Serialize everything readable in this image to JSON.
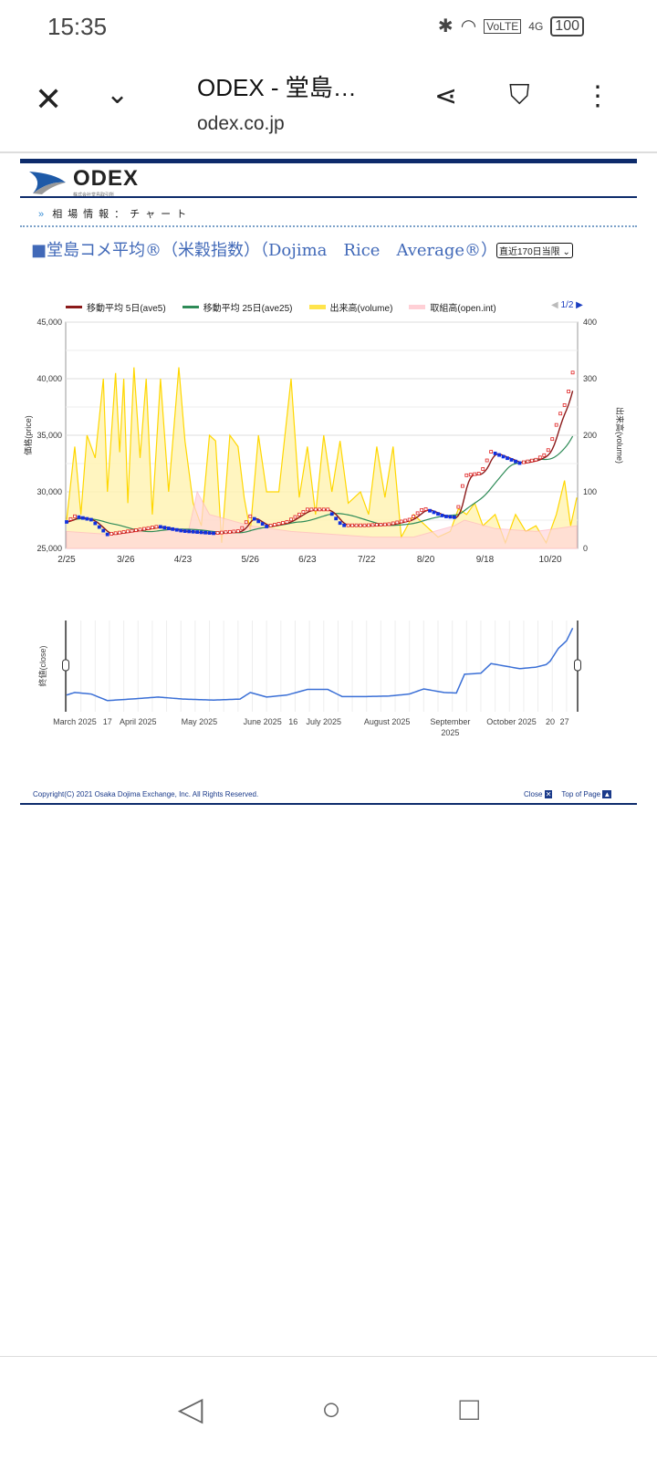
{
  "status": {
    "time": "15:35",
    "battery": "100",
    "network": "4G",
    "volte": "VoLTE"
  },
  "browser": {
    "title": "ODEX - 堂島…",
    "url": "odex.co.jp"
  },
  "site": {
    "logo": "ODEX",
    "logo_sub": "株式会社堂島取引所",
    "breadcrumb": "相場情報：チャート",
    "page_title": "■堂島コメ平均®（米穀指数）（Dojima　Rice　Average®）",
    "range_select": "直近170日当限",
    "pager": "1/2",
    "copyright": "Copyright(C) 2021  Osaka Dojima Exchange, Inc. All Rights Reserved.",
    "close_link": "Close",
    "top_link": "Top of Page"
  },
  "colors": {
    "ave5": "#8b1a1a",
    "ave25": "#2e8b57",
    "volume": "#ffd700",
    "openint": "#ffc0cb",
    "close_line": "#3a6fd6",
    "header": "#0d2b6b"
  },
  "chart_data": {
    "type": "line",
    "legend": [
      "移動平均 5日(ave5)",
      "移動平均 25日(ave25)",
      "出来高(volume)",
      "取組高(open.int)"
    ],
    "ylabel": "価格(price)",
    "y2label": "出来高(volume)",
    "ylim": [
      25000,
      45000
    ],
    "y2lim": [
      0,
      400
    ],
    "yticks": [
      "25,000",
      "30,000",
      "35,000",
      "40,000",
      "45,000"
    ],
    "y2ticks": [
      "0",
      "100",
      "200",
      "300",
      "400"
    ],
    "xticks": [
      {
        "label": "2/25",
        "day": 0
      },
      {
        "label": "3/26",
        "day": 29
      },
      {
        "label": "4/23",
        "day": 57
      },
      {
        "label": "5/26",
        "day": 90
      },
      {
        "label": "6/23",
        "day": 118
      },
      {
        "label": "7/22",
        "day": 147
      },
      {
        "label": "8/20",
        "day": 176
      },
      {
        "label": "9/18",
        "day": 205
      },
      {
        "label": "10/20",
        "day": 237
      }
    ],
    "close": [
      [
        0,
        27300
      ],
      [
        4,
        27800
      ],
      [
        12,
        27500
      ],
      [
        20,
        26200
      ],
      [
        35,
        26600
      ],
      [
        45,
        26900
      ],
      [
        57,
        26500
      ],
      [
        72,
        26300
      ],
      [
        85,
        26500
      ],
      [
        90,
        27800
      ],
      [
        98,
        26900
      ],
      [
        108,
        27300
      ],
      [
        118,
        28400
      ],
      [
        128,
        28400
      ],
      [
        135,
        27000
      ],
      [
        147,
        27000
      ],
      [
        158,
        27100
      ],
      [
        168,
        27500
      ],
      [
        175,
        28500
      ],
      [
        185,
        27800
      ],
      [
        191,
        27700
      ],
      [
        195,
        31400
      ],
      [
        203,
        31600
      ],
      [
        208,
        33500
      ],
      [
        215,
        33000
      ],
      [
        222,
        32500
      ],
      [
        230,
        32800
      ],
      [
        235,
        33300
      ],
      [
        237,
        34000
      ],
      [
        241,
        36500
      ],
      [
        245,
        38000
      ],
      [
        248,
        40500
      ]
    ],
    "volume": [
      [
        0,
        50
      ],
      [
        4,
        180
      ],
      [
        7,
        60
      ],
      [
        10,
        200
      ],
      [
        14,
        160
      ],
      [
        18,
        300
      ],
      [
        20,
        100
      ],
      [
        24,
        310
      ],
      [
        26,
        170
      ],
      [
        28,
        300
      ],
      [
        30,
        80
      ],
      [
        33,
        320
      ],
      [
        36,
        160
      ],
      [
        39,
        300
      ],
      [
        42,
        60
      ],
      [
        46,
        300
      ],
      [
        50,
        100
      ],
      [
        55,
        320
      ],
      [
        58,
        190
      ],
      [
        62,
        80
      ],
      [
        66,
        40
      ],
      [
        70,
        200
      ],
      [
        73,
        190
      ],
      [
        76,
        10
      ],
      [
        80,
        200
      ],
      [
        84,
        180
      ],
      [
        87,
        90
      ],
      [
        90,
        30
      ],
      [
        94,
        200
      ],
      [
        98,
        100
      ],
      [
        104,
        100
      ],
      [
        110,
        300
      ],
      [
        114,
        90
      ],
      [
        118,
        180
      ],
      [
        122,
        60
      ],
      [
        126,
        200
      ],
      [
        130,
        100
      ],
      [
        134,
        190
      ],
      [
        138,
        80
      ],
      [
        144,
        100
      ],
      [
        148,
        60
      ],
      [
        152,
        180
      ],
      [
        156,
        90
      ],
      [
        160,
        180
      ],
      [
        164,
        20
      ],
      [
        170,
        60
      ],
      [
        176,
        40
      ],
      [
        182,
        20
      ],
      [
        188,
        30
      ],
      [
        192,
        70
      ],
      [
        196,
        60
      ],
      [
        200,
        80
      ],
      [
        204,
        40
      ],
      [
        210,
        60
      ],
      [
        215,
        10
      ],
      [
        220,
        60
      ],
      [
        225,
        30
      ],
      [
        230,
        40
      ],
      [
        235,
        10
      ],
      [
        240,
        60
      ],
      [
        244,
        120
      ],
      [
        247,
        40
      ],
      [
        250,
        90
      ]
    ],
    "openint": [
      [
        0,
        30
      ],
      [
        20,
        25
      ],
      [
        40,
        30
      ],
      [
        60,
        35
      ],
      [
        64,
        100
      ],
      [
        70,
        60
      ],
      [
        90,
        40
      ],
      [
        110,
        30
      ],
      [
        130,
        25
      ],
      [
        150,
        20
      ],
      [
        170,
        20
      ],
      [
        190,
        40
      ],
      [
        195,
        50
      ],
      [
        210,
        35
      ],
      [
        230,
        30
      ],
      [
        250,
        40
      ]
    ],
    "navigator": {
      "ylabel": "終値(close)",
      "xticks": [
        {
          "label": "March 2025",
          "day": 4
        },
        {
          "label": "17",
          "day": 20
        },
        {
          "label": "April 2025",
          "day": 35
        },
        {
          "label": "May 2025",
          "day": 65
        },
        {
          "label": "June 2025",
          "day": 96
        },
        {
          "label": "16",
          "day": 111
        },
        {
          "label": "July 2025",
          "day": 126
        },
        {
          "label": "August 2025",
          "day": 157
        },
        {
          "label": "September",
          "label2": "2025",
          "day": 188
        },
        {
          "label": "October 2025",
          "day": 218
        },
        {
          "label": "20",
          "day": 237
        },
        {
          "label": "27",
          "day": 244
        }
      ]
    }
  }
}
